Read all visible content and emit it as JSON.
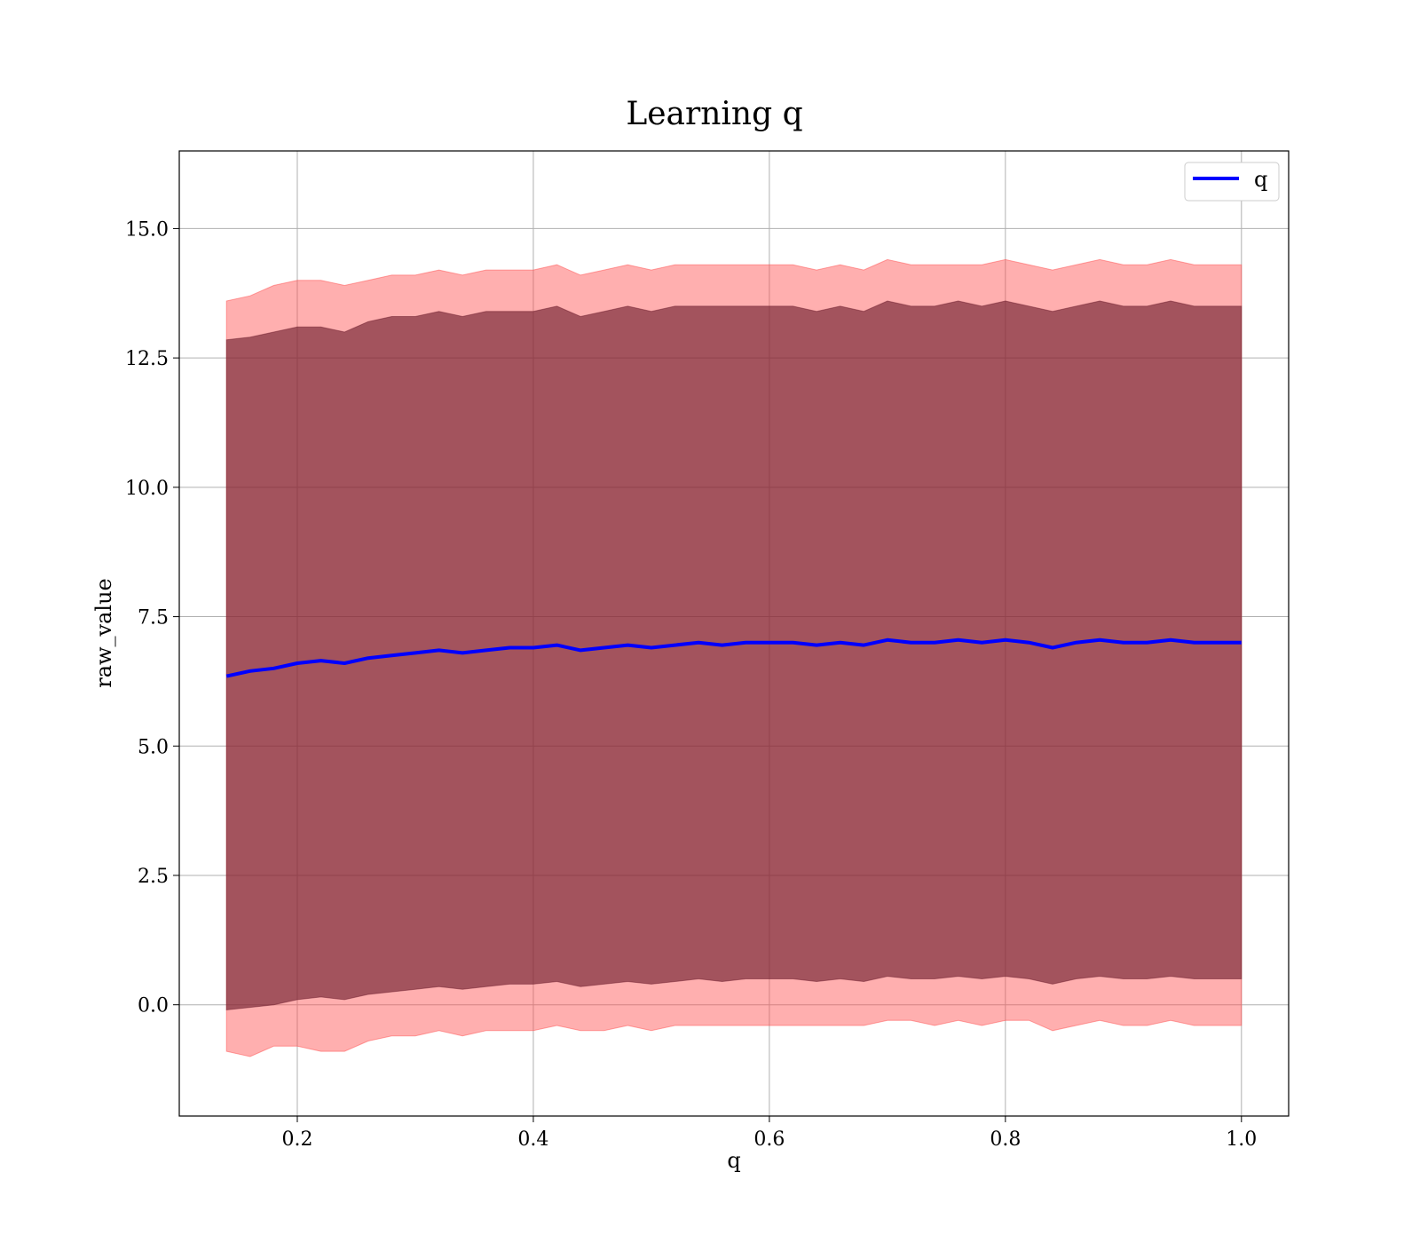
{
  "chart_data": {
    "type": "line",
    "title": "Learning q",
    "xlabel": "q",
    "ylabel": "raw_value",
    "xlim": [
      0.1,
      1.04
    ],
    "ylim": [
      -2.15,
      16.5
    ],
    "x_ticks": [
      0.2,
      0.4,
      0.6,
      0.8,
      1.0
    ],
    "x_tick_labels": [
      "0.2",
      "0.4",
      "0.6",
      "0.8",
      "1.0"
    ],
    "y_ticks": [
      0.0,
      2.5,
      5.0,
      7.5,
      10.0,
      12.5,
      15.0
    ],
    "y_tick_labels": [
      "0.0",
      "2.5",
      "5.0",
      "7.5",
      "10.0",
      "12.5",
      "15.0"
    ],
    "grid": true,
    "legend": {
      "position": "top-right",
      "entries": [
        "q"
      ]
    },
    "colors": {
      "line": "#0000ff",
      "outer_band": "#ff4d4d",
      "inner_band": "#6b1c2c",
      "mid_band": "#b0824f"
    },
    "series": [
      {
        "name": "q",
        "x": [
          0.14,
          0.16,
          0.18,
          0.2,
          0.22,
          0.24,
          0.26,
          0.28,
          0.3,
          0.32,
          0.34,
          0.36,
          0.38,
          0.4,
          0.42,
          0.44,
          0.46,
          0.48,
          0.5,
          0.52,
          0.54,
          0.56,
          0.58,
          0.6,
          0.62,
          0.64,
          0.66,
          0.68,
          0.7,
          0.72,
          0.74,
          0.76,
          0.78,
          0.8,
          0.82,
          0.84,
          0.86,
          0.88,
          0.9,
          0.92,
          0.94,
          0.96,
          0.98,
          1.0
        ],
        "y": [
          6.35,
          6.45,
          6.5,
          6.6,
          6.65,
          6.6,
          6.7,
          6.75,
          6.8,
          6.85,
          6.8,
          6.85,
          6.9,
          6.9,
          6.95,
          6.85,
          6.9,
          6.95,
          6.9,
          6.95,
          7.0,
          6.95,
          7.0,
          7.0,
          7.0,
          6.95,
          7.0,
          6.95,
          7.05,
          7.0,
          7.0,
          7.05,
          7.0,
          7.05,
          7.0,
          6.9,
          7.0,
          7.05,
          7.0,
          7.0,
          7.05,
          7.0,
          7.0,
          7.0
        ]
      }
    ],
    "bands": [
      {
        "name": "outer",
        "x": [
          0.14,
          0.16,
          0.18,
          0.2,
          0.22,
          0.24,
          0.26,
          0.28,
          0.3,
          0.32,
          0.34,
          0.36,
          0.38,
          0.4,
          0.42,
          0.44,
          0.46,
          0.48,
          0.5,
          0.52,
          0.54,
          0.56,
          0.58,
          0.6,
          0.62,
          0.64,
          0.66,
          0.68,
          0.7,
          0.72,
          0.74,
          0.76,
          0.78,
          0.8,
          0.82,
          0.84,
          0.86,
          0.88,
          0.9,
          0.92,
          0.94,
          0.96,
          0.98,
          1.0
        ],
        "upper": [
          13.6,
          13.7,
          13.9,
          14.0,
          14.0,
          13.9,
          14.0,
          14.1,
          14.1,
          14.2,
          14.1,
          14.2,
          14.2,
          14.2,
          14.3,
          14.1,
          14.2,
          14.3,
          14.2,
          14.3,
          14.3,
          14.3,
          14.3,
          14.3,
          14.3,
          14.2,
          14.3,
          14.2,
          14.4,
          14.3,
          14.3,
          14.3,
          14.3,
          14.4,
          14.3,
          14.2,
          14.3,
          14.4,
          14.3,
          14.3,
          14.4,
          14.3,
          14.3,
          14.3
        ],
        "lower": [
          -0.9,
          -1.0,
          -0.8,
          -0.8,
          -0.9,
          -0.9,
          -0.7,
          -0.6,
          -0.6,
          -0.5,
          -0.6,
          -0.5,
          -0.5,
          -0.5,
          -0.4,
          -0.5,
          -0.5,
          -0.4,
          -0.5,
          -0.4,
          -0.4,
          -0.4,
          -0.4,
          -0.4,
          -0.4,
          -0.4,
          -0.4,
          -0.4,
          -0.3,
          -0.3,
          -0.4,
          -0.3,
          -0.4,
          -0.3,
          -0.3,
          -0.5,
          -0.4,
          -0.3,
          -0.4,
          -0.4,
          -0.3,
          -0.4,
          -0.4,
          -0.4
        ]
      },
      {
        "name": "inner",
        "x": [
          0.14,
          0.16,
          0.18,
          0.2,
          0.22,
          0.24,
          0.26,
          0.28,
          0.3,
          0.32,
          0.34,
          0.36,
          0.38,
          0.4,
          0.42,
          0.44,
          0.46,
          0.48,
          0.5,
          0.52,
          0.54,
          0.56,
          0.58,
          0.6,
          0.62,
          0.64,
          0.66,
          0.68,
          0.7,
          0.72,
          0.74,
          0.76,
          0.78,
          0.8,
          0.82,
          0.84,
          0.86,
          0.88,
          0.9,
          0.92,
          0.94,
          0.96,
          0.98,
          1.0
        ],
        "upper": [
          12.85,
          12.9,
          13.0,
          13.1,
          13.1,
          13.0,
          13.2,
          13.3,
          13.3,
          13.4,
          13.3,
          13.4,
          13.4,
          13.4,
          13.5,
          13.3,
          13.4,
          13.5,
          13.4,
          13.5,
          13.5,
          13.5,
          13.5,
          13.5,
          13.5,
          13.4,
          13.5,
          13.4,
          13.6,
          13.5,
          13.5,
          13.6,
          13.5,
          13.6,
          13.5,
          13.4,
          13.5,
          13.6,
          13.5,
          13.5,
          13.6,
          13.5,
          13.5,
          13.5
        ],
        "lower": [
          -0.1,
          -0.05,
          0.0,
          0.1,
          0.15,
          0.1,
          0.2,
          0.25,
          0.3,
          0.35,
          0.3,
          0.35,
          0.4,
          0.4,
          0.45,
          0.35,
          0.4,
          0.45,
          0.4,
          0.45,
          0.5,
          0.45,
          0.5,
          0.5,
          0.5,
          0.45,
          0.5,
          0.45,
          0.55,
          0.5,
          0.5,
          0.55,
          0.5,
          0.55,
          0.5,
          0.4,
          0.5,
          0.55,
          0.5,
          0.5,
          0.55,
          0.5,
          0.5,
          0.5
        ]
      }
    ]
  }
}
